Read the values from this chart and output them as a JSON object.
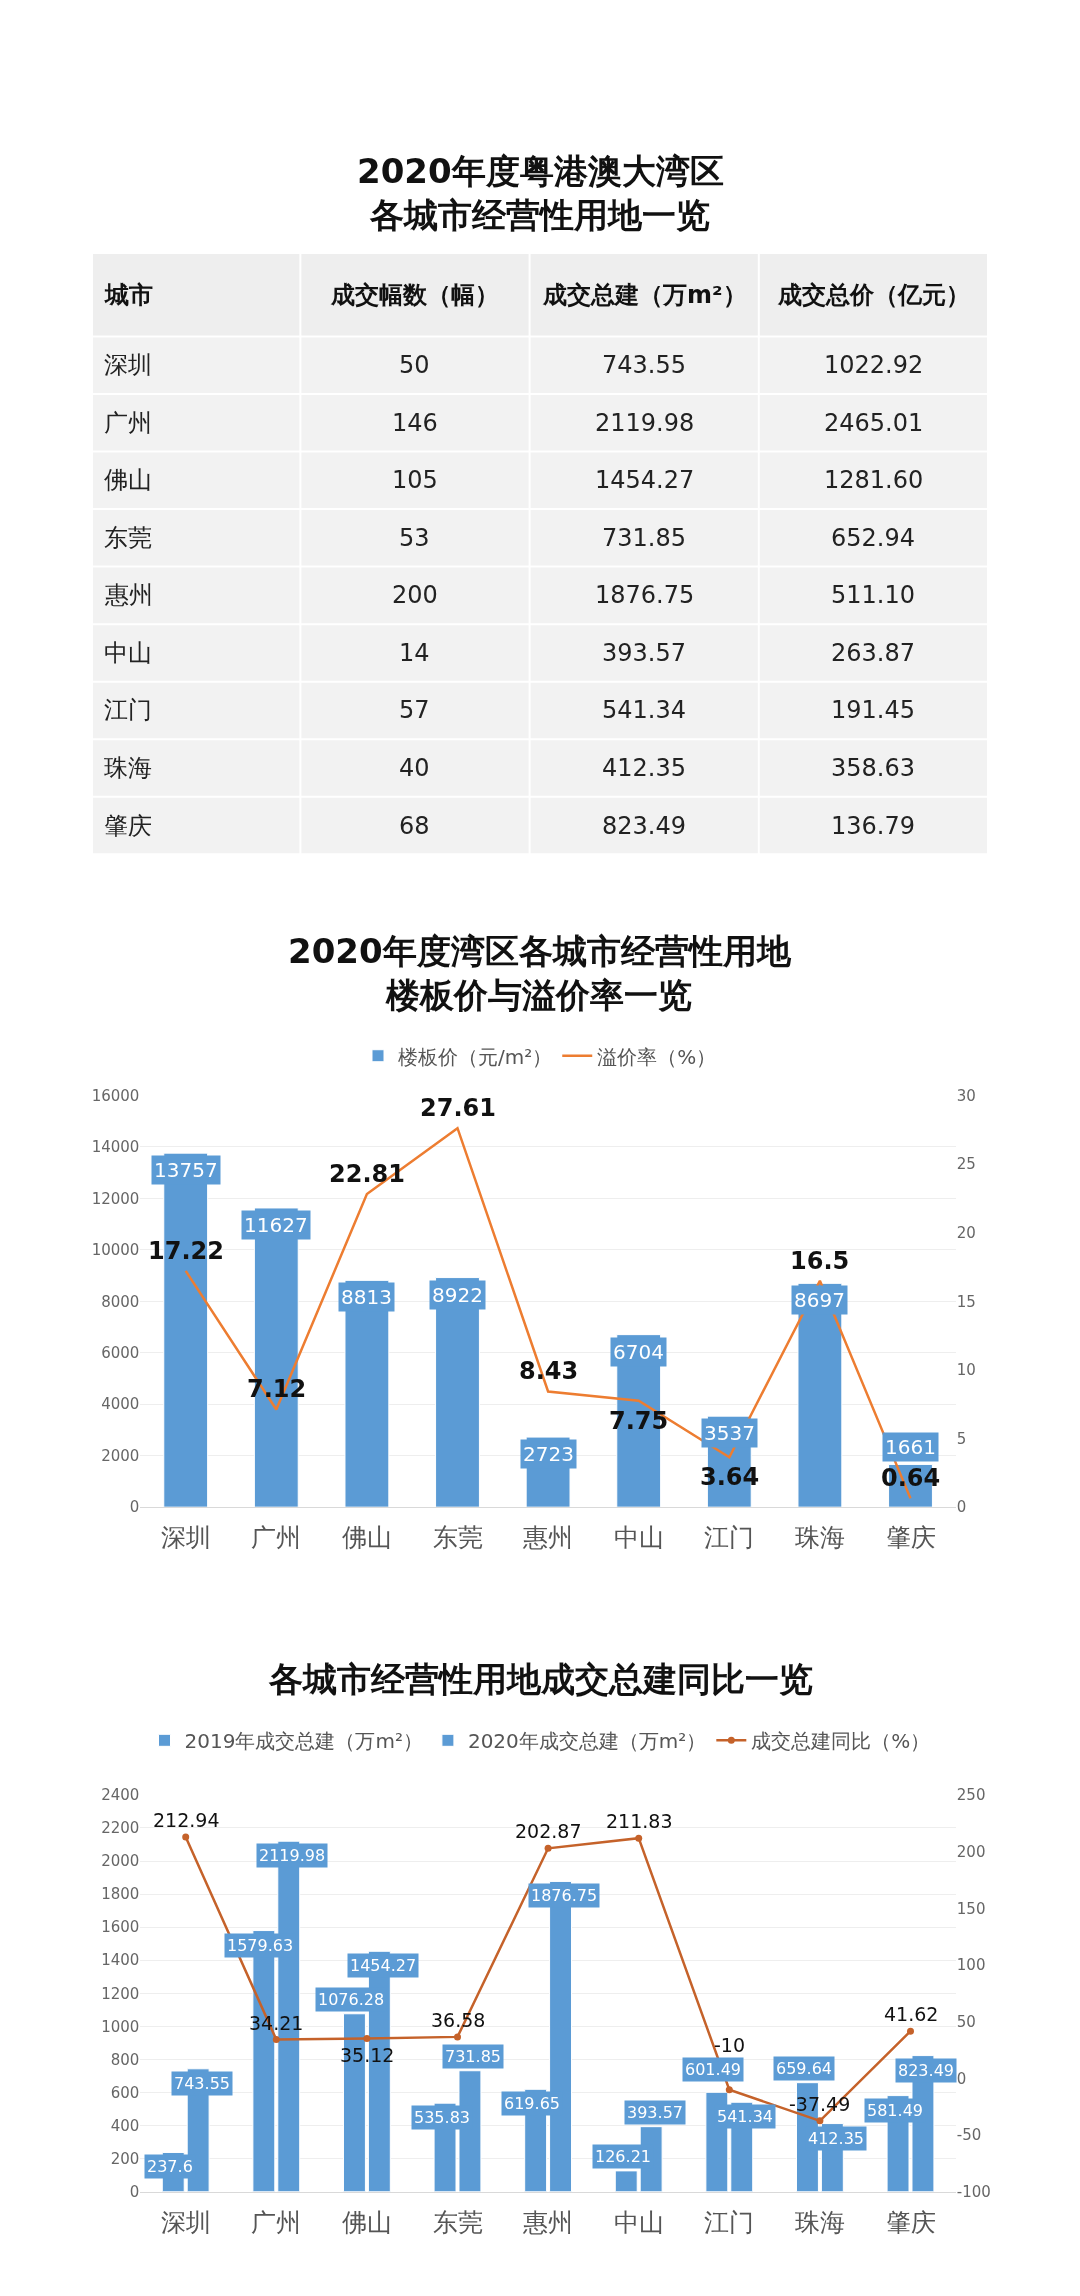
{
  "chart_data": [
    {
      "type": "other",
      "title": "2020年度粤港澳大湾区各城市经营性用地一览",
      "ylabel": "城市",
      "categories": [
        "成交幅数（幅）",
        "成交总建（万m²）",
        "成交总价（亿元）"
      ],
      "y_categories": [
        "深圳",
        "广州",
        "佛山",
        "东莞",
        "惠州",
        "中山",
        "江门",
        "珠海",
        "肇庆"
      ],
      "annotations": [
        "50",
        "743.55",
        "1022.92",
        "146",
        "2119.98",
        "2465.01",
        "105",
        "1454.27",
        "1281.60",
        "53",
        "731.85",
        "652.94",
        "200",
        "1876.75",
        "511.10",
        "14",
        "393.57",
        "263.87",
        "57",
        "541.34",
        "191.45",
        "40",
        "412.35",
        "358.63",
        "68",
        "823.49",
        "136.79"
      ]
    },
    {
      "type": "bar",
      "title": "2020年度湾区各城市经营性用地楼板价与溢价率一览",
      "categories": [
        "深圳",
        "广州",
        "佛山",
        "东莞",
        "惠州",
        "中山",
        "江门",
        "珠海",
        "肇庆"
      ],
      "series": [
        {
          "name": "楼板价（元/m²）",
          "type": "bar",
          "color": "#5b9bd5",
          "values": [
            13757,
            11627,
            8813,
            8922,
            2723,
            6704,
            3537,
            8697,
            1661
          ]
        },
        {
          "name": "溢价率（%）",
          "type": "line",
          "axis": "y2",
          "color": "#ed7d31",
          "marker": "none",
          "values": [
            17.22,
            7.12,
            22.81,
            27.61,
            8.43,
            7.75,
            3.64,
            16.5,
            0.64
          ]
        }
      ],
      "ylim": [
        0,
        16000
      ],
      "yticks": [
        0,
        2000,
        4000,
        6000,
        8000,
        10000,
        12000,
        14000,
        16000
      ],
      "y2lim": [
        0,
        30
      ],
      "y2ticks": [
        0,
        5,
        10,
        15,
        20,
        25,
        30
      ],
      "data_labels": true,
      "grid": "y",
      "legend": "top"
    },
    {
      "type": "bar",
      "title": "各城市经营性用地成交总建同比一览",
      "categories": [
        "深圳",
        "广州",
        "佛山",
        "东莞",
        "惠州",
        "中山",
        "江门",
        "珠海",
        "肇庆"
      ],
      "series": [
        {
          "name": "2019年成交总建（万m²）",
          "type": "bar",
          "color": "#5b9bd5",
          "values": [
            237.6,
            1579.63,
            1076.28,
            535.83,
            619.65,
            126.21,
            601.49,
            659.64,
            581.49
          ]
        },
        {
          "name": "2020年成交总建（万m²）",
          "type": "bar",
          "color": "#5b9bd5",
          "values": [
            743.55,
            2119.98,
            1454.27,
            731.85,
            1876.75,
            393.57,
            541.34,
            412.35,
            823.49
          ]
        },
        {
          "name": "成交总建同比（%）",
          "type": "line",
          "axis": "y2",
          "color": "#c5622a",
          "marker": "circle",
          "values": [
            212.94,
            34.21,
            35.12,
            36.58,
            202.87,
            211.83,
            -10,
            -37.49,
            41.62
          ]
        }
      ],
      "ylim": [
        0,
        2400
      ],
      "yticks": [
        0,
        200,
        400,
        600,
        800,
        1000,
        1200,
        1400,
        1600,
        1800,
        2000,
        2200,
        2400
      ],
      "y2lim": [
        -100,
        250
      ],
      "y2ticks": [
        -100,
        -50,
        0,
        50,
        100,
        150,
        200,
        250
      ],
      "data_labels": true,
      "grid": "y",
      "legend": "top"
    }
  ]
}
